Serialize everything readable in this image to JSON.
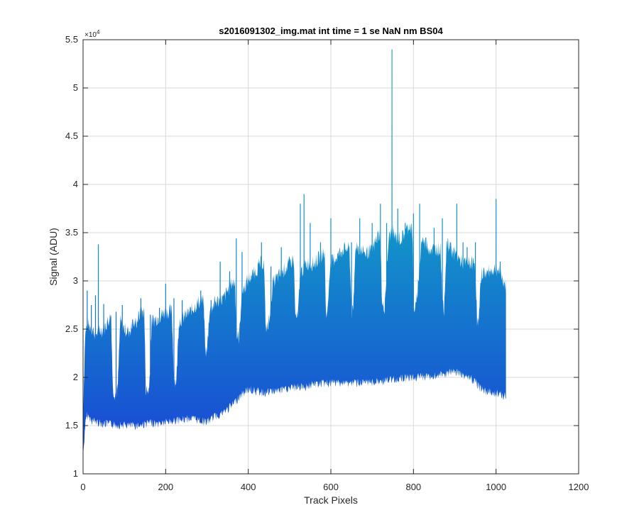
{
  "chart_data": {
    "type": "area",
    "title": "s2016091302_img.mat int time = 1 se  NaN nm BS04",
    "xlabel": "Track Pixels",
    "ylabel": "Signal (ADU)",
    "xlim": [
      0,
      1200
    ],
    "ylim": [
      10000,
      55000
    ],
    "x_ticks": [
      0,
      200,
      400,
      600,
      800,
      1000,
      1200
    ],
    "x_tick_labels": [
      "0",
      "200",
      "400",
      "600",
      "800",
      "1000",
      "1200"
    ],
    "y_ticks": [
      10000,
      15000,
      20000,
      25000,
      30000,
      35000,
      40000,
      45000,
      50000,
      55000
    ],
    "y_tick_labels": [
      "1",
      "1.5",
      "2",
      "2.5",
      "3",
      "3.5",
      "4",
      "4.5",
      "5",
      "5.5"
    ],
    "y_exponent_label": "×10",
    "y_exponent_power": "4",
    "grid": true,
    "colors": {
      "low": "#1a3fd6",
      "mid": "#1296c9",
      "high": "#27b097",
      "axis": "#262626",
      "grid": "#d9d9d9"
    },
    "series": [
      {
        "name": "upper envelope",
        "x": [
          0,
          5,
          10,
          20,
          30,
          40,
          50,
          60,
          68,
          72,
          78,
          84,
          90,
          100,
          110,
          120,
          130,
          140,
          148,
          152,
          156,
          160,
          166,
          180,
          200,
          215,
          220,
          226,
          232,
          240,
          260,
          280,
          292,
          296,
          300,
          306,
          320,
          340,
          360,
          368,
          372,
          378,
          384,
          400,
          420,
          430,
          438,
          442,
          448,
          460,
          480,
          500,
          510,
          514,
          520,
          526,
          540,
          560,
          580,
          585,
          588,
          592,
          598,
          610,
          630,
          645,
          650,
          654,
          660,
          680,
          700,
          715,
          720,
          724,
          730,
          740,
          748,
          755,
          770,
          790,
          797,
          801,
          806,
          820,
          840,
          860,
          866,
          870,
          874,
          880,
          900,
          920,
          940,
          950,
          954,
          958,
          964,
          980,
          1000,
          1010,
          1020,
          1024
        ],
        "values": [
          16000,
          24000,
          25200,
          24800,
          24200,
          24500,
          24700,
          25500,
          26200,
          18500,
          18000,
          18500,
          25500,
          24700,
          24400,
          25000,
          25500,
          26500,
          26500,
          18500,
          18200,
          18500,
          25500,
          25800,
          26500,
          26500,
          19500,
          19300,
          25500,
          25800,
          26500,
          27500,
          27500,
          22500,
          22300,
          26500,
          27500,
          27800,
          29500,
          29500,
          24000,
          23800,
          28500,
          29800,
          30800,
          31500,
          31500,
          25000,
          24800,
          29500,
          30500,
          31500,
          32000,
          26000,
          25800,
          30500,
          31500,
          31500,
          32500,
          32500,
          26500,
          26300,
          31500,
          32000,
          33000,
          33000,
          26500,
          26300,
          33500,
          32500,
          32800,
          34500,
          34500,
          27000,
          27000,
          34000,
          35000,
          34200,
          34000,
          35500,
          35000,
          27000,
          26800,
          34000,
          33000,
          33000,
          33000,
          27000,
          26800,
          33500,
          32500,
          31500,
          31500,
          31500,
          25500,
          25300,
          30500,
          30500,
          31000,
          30500,
          29500,
          29000
        ]
      },
      {
        "name": "lower envelope",
        "x": [
          0,
          5,
          10,
          20,
          40,
          60,
          80,
          100,
          120,
          140,
          160,
          180,
          200,
          220,
          240,
          260,
          280,
          300,
          320,
          340,
          360,
          380,
          400,
          420,
          440,
          460,
          480,
          500,
          520,
          540,
          560,
          580,
          600,
          620,
          640,
          660,
          680,
          700,
          720,
          740,
          760,
          780,
          800,
          820,
          840,
          860,
          880,
          900,
          920,
          940,
          950,
          960,
          970,
          980,
          990,
          1000,
          1010,
          1020,
          1024
        ],
        "values": [
          12000,
          15500,
          16500,
          16000,
          15700,
          15600,
          15500,
          15500,
          15400,
          15500,
          15700,
          15600,
          15800,
          15900,
          16000,
          16200,
          16000,
          15800,
          16400,
          16800,
          17500,
          18500,
          19200,
          19000,
          18800,
          19000,
          19100,
          19300,
          19400,
          19500,
          19700,
          19800,
          19800,
          19900,
          19800,
          19900,
          19800,
          19900,
          20000,
          20100,
          20300,
          20400,
          20400,
          20500,
          20500,
          20600,
          20800,
          21000,
          20700,
          20300,
          20000,
          19400,
          19100,
          18900,
          18900,
          18800,
          18800,
          18500,
          18500
        ]
      }
    ],
    "spikes": {
      "x": [
        10,
        20,
        30,
        37,
        50,
        80,
        95,
        120,
        140,
        163,
        185,
        200,
        220,
        240,
        262,
        285,
        310,
        332,
        355,
        371,
        385,
        408,
        432,
        455,
        480,
        503,
        526,
        535,
        550,
        575,
        600,
        625,
        650,
        670,
        680,
        700,
        720,
        735,
        748,
        762,
        780,
        800,
        815,
        830,
        850,
        870,
        890,
        905,
        920,
        930,
        950,
        970,
        985,
        1000,
        1010
      ],
      "values": [
        29000,
        27500,
        28500,
        33800,
        27600,
        26800,
        27500,
        26000,
        28200,
        26500,
        27200,
        29700,
        28200,
        28000,
        26500,
        29000,
        28000,
        32000,
        31000,
        34400,
        33000,
        30500,
        34000,
        31500,
        33500,
        31000,
        38000,
        39000,
        36000,
        34000,
        36500,
        33000,
        34000,
        36500,
        33000,
        36000,
        38000,
        36000,
        54000,
        37500,
        36000,
        37000,
        38000,
        34500,
        35500,
        36500,
        34000,
        38000,
        34000,
        33500,
        34000,
        31000,
        31000,
        38500,
        32000
      ]
    }
  }
}
